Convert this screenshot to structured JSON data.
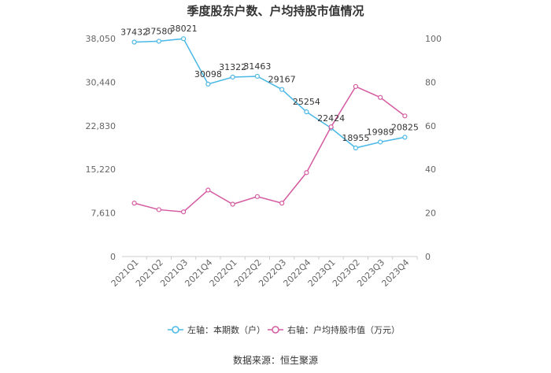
{
  "chart_data": {
    "type": "line",
    "title": "季度股东户数、户均持股市值情况",
    "categories": [
      "2021Q1",
      "2021Q2",
      "2021Q3",
      "2021Q4",
      "2022Q1",
      "2022Q2",
      "2022Q3",
      "2022Q4",
      "2023Q1",
      "2023Q2",
      "2023Q3",
      "2023Q4"
    ],
    "left_axis": {
      "min": 0,
      "max": 38050,
      "ticks": [
        0,
        7610,
        15220,
        22830,
        30440,
        38050
      ],
      "tick_labels": [
        "0",
        "7,610",
        "15,220",
        "22,830",
        "30,440",
        "38,050"
      ]
    },
    "right_axis": {
      "min": 0,
      "max": 100,
      "ticks": [
        0,
        20,
        40,
        60,
        80,
        100
      ],
      "tick_labels": [
        "0",
        "20",
        "40",
        "60",
        "80",
        "100"
      ]
    },
    "series": [
      {
        "name": "左轴：本期数（户）",
        "axis": "left",
        "color": "#4cb8e6",
        "values": [
          37432,
          37580,
          38021,
          30098,
          31322,
          31463,
          29167,
          25254,
          22424,
          18955,
          19989,
          20825
        ],
        "labels": [
          "37432",
          "37580",
          "38021",
          "30098",
          "31322",
          "31463",
          "29167",
          "25254",
          "22424",
          "18955",
          "19989",
          "20825"
        ]
      },
      {
        "name": "右轴：户均持股市值（万元）",
        "axis": "right",
        "color": "#d45aa0",
        "values": [
          24.5,
          21.5,
          20.5,
          30.5,
          24.0,
          27.5,
          24.5,
          38.5,
          59.5,
          78.0,
          73.0,
          64.5
        ]
      }
    ],
    "legend_position": "bottom",
    "grid": false
  },
  "source": "数据来源：恒生聚源"
}
